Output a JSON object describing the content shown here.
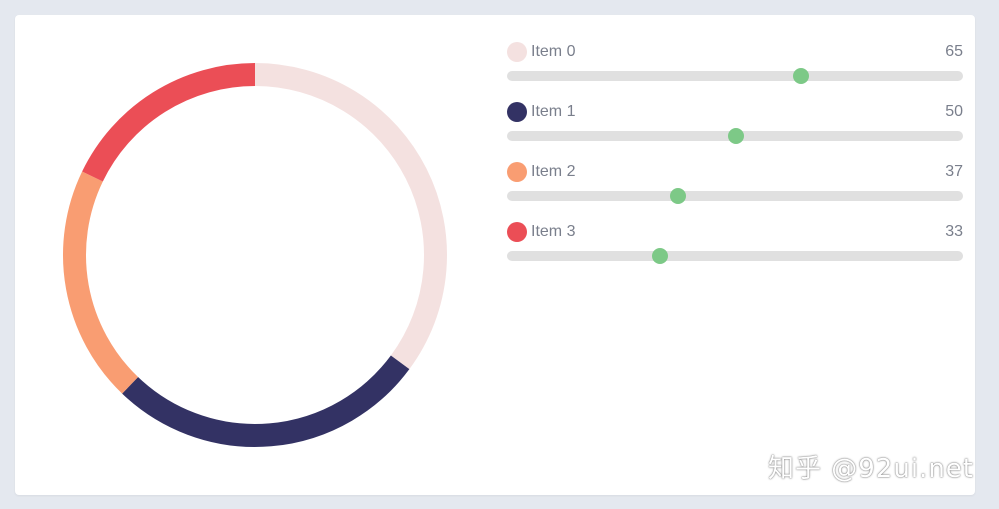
{
  "chart_data": {
    "type": "pie",
    "donut": true,
    "categories": [
      "Item 0",
      "Item 1",
      "Item 2",
      "Item 3"
    ],
    "values": [
      65,
      50,
      37,
      33
    ],
    "colors": [
      "#f4e1e0",
      "#333264",
      "#f99d72",
      "#eb4e56"
    ],
    "title": ""
  },
  "sliders": [
    {
      "label": "Item 0",
      "value": "65",
      "fraction": 0.645
    },
    {
      "label": "Item 1",
      "value": "50",
      "fraction": 0.502
    },
    {
      "label": "Item 2",
      "value": "37",
      "fraction": 0.374
    },
    {
      "label": "Item 3",
      "value": "33",
      "fraction": 0.335
    }
  ],
  "theme": {
    "thumb_color": "#7dc987",
    "track_color": "#e0e0e0"
  },
  "watermark": "知乎 @92ui.net"
}
